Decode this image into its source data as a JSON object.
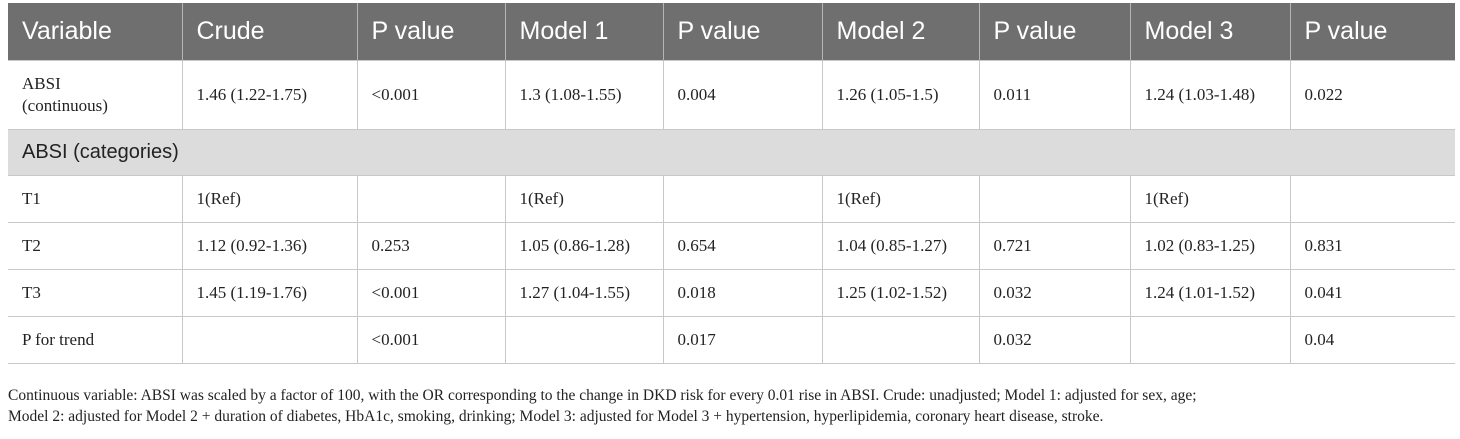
{
  "table": {
    "headers": [
      "Variable",
      "Crude",
      "P value",
      "Model 1",
      "P value",
      "Model 2",
      "P value",
      "Model 3",
      "P value"
    ],
    "rows": [
      {
        "label_lines": [
          "ABSI",
          "(continuous)"
        ],
        "cells": [
          "1.46 (1.22-1.75)",
          "<0.001",
          "1.3 (1.08-1.55)",
          "0.004",
          "1.26 (1.05-1.5)",
          "0.011",
          "1.24 (1.03-1.48)",
          "0.022"
        ]
      },
      {
        "section_label": "ABSI (categories)"
      },
      {
        "label": "T1",
        "cells": [
          "1(Ref)",
          "",
          "1(Ref)",
          "",
          "1(Ref)",
          "",
          "1(Ref)",
          ""
        ]
      },
      {
        "label": "T2",
        "cells": [
          "1.12 (0.92-1.36)",
          "0.253",
          "1.05 (0.86-1.28)",
          "0.654",
          "1.04 (0.85-1.27)",
          "0.721",
          "1.02 (0.83-1.25)",
          "0.831"
        ]
      },
      {
        "label": "T3",
        "cells": [
          "1.45 (1.19-1.76)",
          "<0.001",
          "1.27 (1.04-1.55)",
          "0.018",
          "1.25 (1.02-1.52)",
          "0.032",
          "1.24 (1.01-1.52)",
          "0.041"
        ]
      },
      {
        "label": "P for trend",
        "cells": [
          "",
          "<0.001",
          "",
          "0.017",
          "",
          "0.032",
          "",
          "0.04"
        ]
      }
    ]
  },
  "footnote": {
    "line1": "Continuous variable: ABSI was scaled by a factor of 100, with the OR corresponding to the change in DKD risk for every 0.01 rise in ABSI. Crude: unadjusted; Model 1: adjusted for sex, age;",
    "line2": "Model 2: adjusted for Model 2 + duration of diabetes, HbA1c, smoking, drinking; Model 3: adjusted for Model 3 + hypertension, hyperlipidemia, coronary heart disease, stroke."
  },
  "colors": {
    "header_bg": "#6f6f6f",
    "header_text": "#ffffff",
    "section_bg": "#dcdcdc",
    "grid_line": "#c8c8c8"
  }
}
